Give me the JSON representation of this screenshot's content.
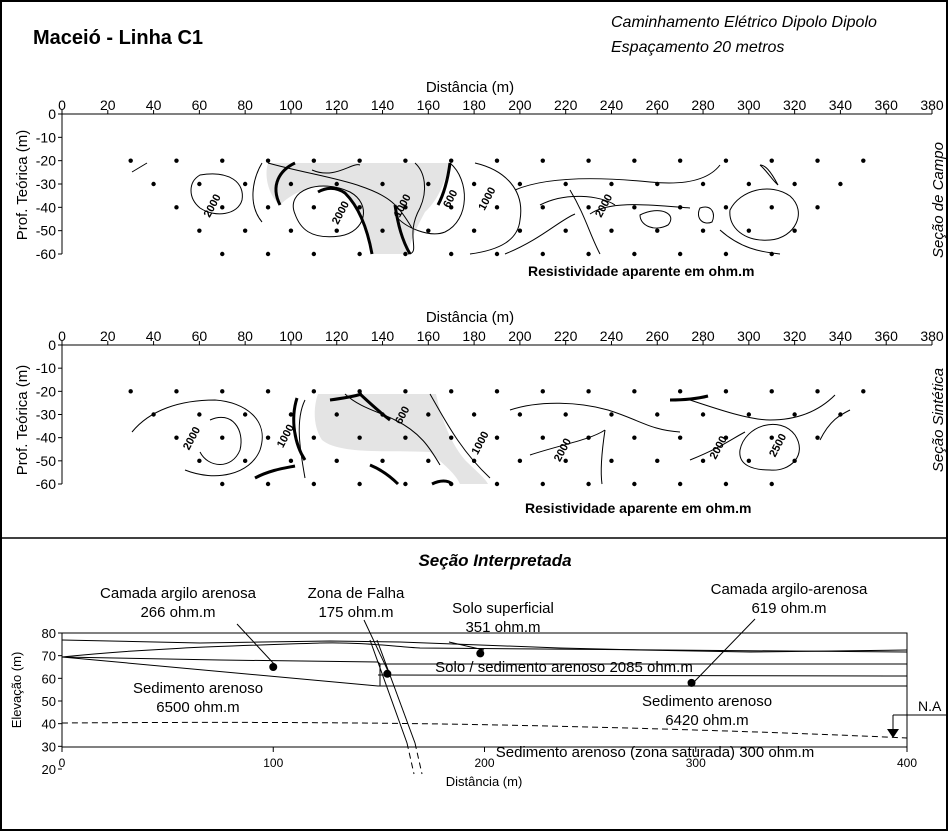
{
  "header": {
    "title": "Maceió - Linha C1",
    "subtitle_line1": "Caminhamento Elétrico Dipolo Dipolo",
    "subtitle_line2": "Espaçamento 20 metros"
  },
  "chart_data": [
    {
      "type": "heatmap",
      "section_label": "Seção de Campo",
      "xlabel": "Distância (m)",
      "ylabel": "Prof. Teórica (m)",
      "caption": "Resistividade aparente em ohm.m",
      "x_ticks": [
        "0",
        "20",
        "40",
        "60",
        "80",
        "100",
        "120",
        "140",
        "160",
        "180",
        "200",
        "220",
        "240",
        "260",
        "280",
        "300",
        "320",
        "340",
        "360",
        "380"
      ],
      "y_ticks": [
        "0",
        "-10",
        "-20",
        "-30",
        "-40",
        "-50",
        "-60"
      ],
      "xlim": [
        0,
        380
      ],
      "ylim": [
        -60,
        0
      ],
      "contour_labels": [
        {
          "text": "2000",
          "x": 67,
          "y": -40
        },
        {
          "text": "2000",
          "x": 123,
          "y": -43
        },
        {
          "text": "1000",
          "x": 150,
          "y": -40
        },
        {
          "text": "600",
          "x": 171,
          "y": -37
        },
        {
          "text": "1000",
          "x": 187,
          "y": -37
        },
        {
          "text": "2000",
          "x": 238,
          "y": -40
        }
      ]
    },
    {
      "type": "heatmap",
      "section_label": "Seção Sintética",
      "xlabel": "Distância (m)",
      "ylabel": "Prof. Teórica (m)",
      "caption": "Resistividade aparente em ohm.m",
      "x_ticks": [
        "0",
        "20",
        "40",
        "60",
        "80",
        "100",
        "120",
        "140",
        "160",
        "180",
        "200",
        "220",
        "240",
        "260",
        "280",
        "300",
        "320",
        "340",
        "360",
        "380"
      ],
      "y_ticks": [
        "0",
        "-10",
        "-20",
        "-30",
        "-40",
        "-50",
        "-60"
      ],
      "xlim": [
        0,
        380
      ],
      "ylim": [
        -60,
        0
      ],
      "contour_labels": [
        {
          "text": "2000",
          "x": 58,
          "y": -41
        },
        {
          "text": "1000",
          "x": 99,
          "y": -40
        },
        {
          "text": "600",
          "x": 150,
          "y": -31
        },
        {
          "text": "1000",
          "x": 184,
          "y": -43
        },
        {
          "text": "2000",
          "x": 220,
          "y": -46
        },
        {
          "text": "2000",
          "x": 288,
          "y": -45
        },
        {
          "text": "2500",
          "x": 314,
          "y": -44
        }
      ]
    },
    {
      "type": "line",
      "title": "Seção Interpretada",
      "xlabel": "Distância (m)",
      "ylabel": "Elevação (m)",
      "x_ticks": [
        "0",
        "100",
        "200",
        "300",
        "400"
      ],
      "y_ticks": [
        "80",
        "70",
        "60",
        "50",
        "40",
        "30",
        "20"
      ],
      "xlim": [
        0,
        400
      ],
      "ylim": [
        20,
        80
      ],
      "water_table_label": "N.A",
      "layers": [
        {
          "name": "Camada argilo arenosa",
          "line2": "266 ohm.m",
          "point": [
            100,
            65
          ]
        },
        {
          "name": "Zona de Falha",
          "line2": "175 ohm.m",
          "point": [
            154,
            62
          ]
        },
        {
          "name": "Solo superficial",
          "line2": "351 ohm.m",
          "point": [
            198,
            71
          ]
        },
        {
          "name": "Camada argilo-arenosa",
          "line2": "619 ohm.m",
          "point": [
            298,
            58
          ]
        },
        {
          "name": "Solo / sedimento arenoso 2085 ohm.m",
          "line2": ""
        },
        {
          "name": "Sedimento arenoso",
          "line2": "6500 ohm.m"
        },
        {
          "name": "Sedimento arenoso",
          "line2": "6420 ohm.m"
        },
        {
          "name": "Sedimento arenoso (zona saturada) 300 ohm.m",
          "line2": ""
        }
      ]
    }
  ]
}
